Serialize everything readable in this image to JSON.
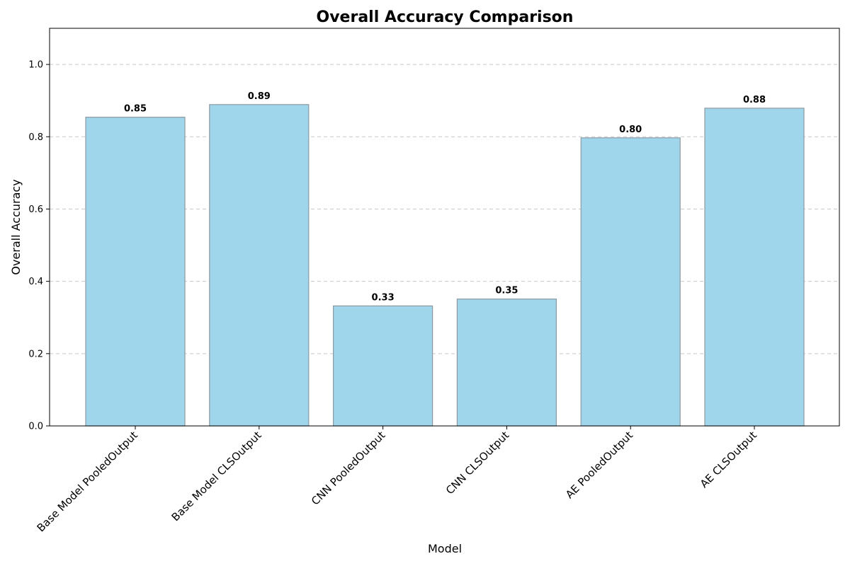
{
  "chart_data": {
    "type": "bar",
    "title": "Overall Accuracy Comparison",
    "xlabel": "Model",
    "ylabel": "Overall Accuracy",
    "categories": [
      "Base Model PooledOutput",
      "Base Model CLSOutput",
      "CNN PooledOutput",
      "CNN CLSOutput",
      "AE PooledOutput",
      "AE CLSOutput"
    ],
    "values": [
      0.854,
      0.889,
      0.332,
      0.351,
      0.797,
      0.879
    ],
    "data_labels": [
      "0.85",
      "0.89",
      "0.33",
      "0.35",
      "0.80",
      "0.88"
    ],
    "y_ticks": [
      "0.0",
      "0.2",
      "0.4",
      "0.6",
      "0.8",
      "1.0"
    ],
    "y_tick_values": [
      0.0,
      0.2,
      0.4,
      0.6,
      0.8,
      1.0
    ],
    "ylim": [
      0,
      1.1
    ],
    "grid": "y-dashed",
    "legend": "none",
    "colors": {
      "bar_fill": "#A0D6EC",
      "bar_edge": "#8C99A1",
      "grid": "#C8C8C8",
      "axis": "#000000"
    }
  }
}
